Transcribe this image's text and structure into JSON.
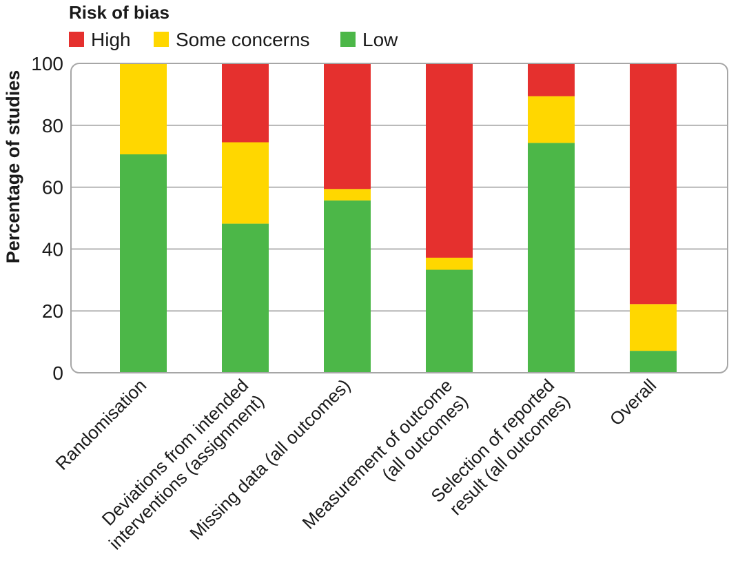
{
  "chart_data": {
    "type": "bar",
    "stacked": true,
    "legend_title": "Risk of bias",
    "legend_position": "top-left",
    "ylabel": "Percentage of studies",
    "xlabel": "",
    "ylim": [
      0,
      100
    ],
    "yticks": [
      0,
      20,
      40,
      60,
      80,
      100
    ],
    "grid": true,
    "categories": [
      [
        "Randomisation"
      ],
      [
        "Deviations from intended",
        "interventions (assignment)"
      ],
      [
        "Missing data (all outcomes)"
      ],
      [
        "Measurement of outcome",
        "(all outcomes)"
      ],
      [
        "Selection of reported",
        "result (all outcomes)"
      ],
      [
        "Overall"
      ]
    ],
    "series": [
      {
        "name": "Low",
        "color": "#4cb748",
        "values": [
          70.6,
          48.2,
          55.7,
          33.3,
          74.3,
          7.1
        ]
      },
      {
        "name": "Some concerns",
        "color": "#ffd700",
        "values": [
          29.4,
          26.3,
          3.7,
          3.9,
          15.1,
          15.1
        ]
      },
      {
        "name": "High",
        "color": "#e5302e",
        "values": [
          0.0,
          25.5,
          40.6,
          62.8,
          10.6,
          77.8
        ]
      }
    ],
    "legend_order": [
      "High",
      "Some concerns",
      "Low"
    ]
  }
}
